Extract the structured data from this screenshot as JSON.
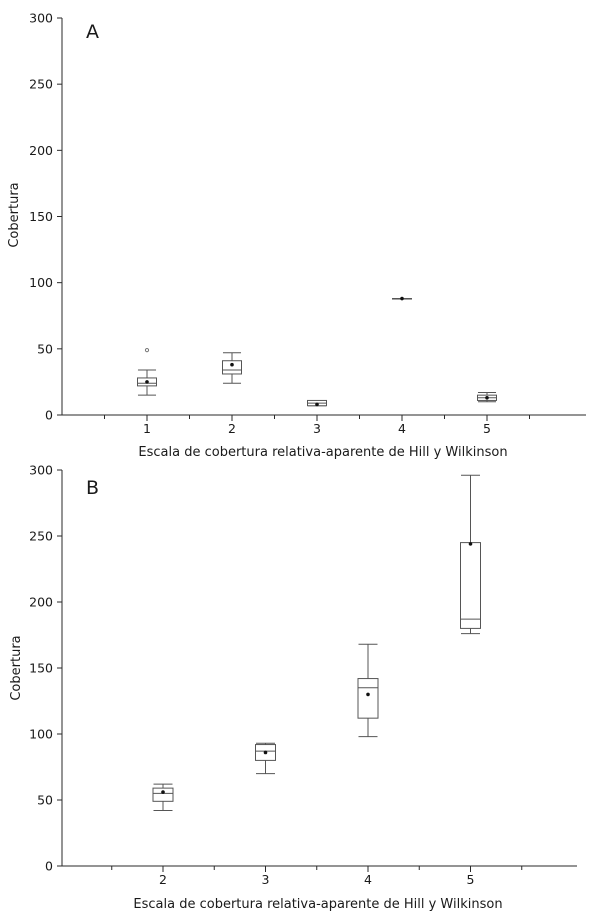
{
  "chart_data": [
    {
      "type": "boxplot",
      "panel_label": "A",
      "xlabel": "Escala de cobertura relativa-aparente de Hill y Wilkinson",
      "ylabel": "Cobertura",
      "ylim": [
        0,
        300
      ],
      "yticks": [
        0,
        50,
        100,
        150,
        200,
        250,
        300
      ],
      "categories": [
        "1",
        "2",
        "3",
        "4",
        "5"
      ],
      "boxes": [
        {
          "category": "1",
          "min": 15,
          "q1": 22,
          "median": 24,
          "q3": 28,
          "max": 34,
          "mean": 25,
          "outliers": [
            49
          ]
        },
        {
          "category": "2",
          "min": 24,
          "q1": 31,
          "median": 34,
          "q3": 41,
          "max": 47,
          "mean": 38,
          "outliers": []
        },
        {
          "category": "3",
          "min": 7,
          "q1": 7,
          "median": 9,
          "q3": 11,
          "max": 11,
          "mean": 8,
          "outliers": []
        },
        {
          "category": "4",
          "min": 88,
          "q1": 88,
          "median": 88,
          "q3": 88,
          "max": 88,
          "mean": 88,
          "outliers": []
        },
        {
          "category": "5",
          "min": 10,
          "q1": 11,
          "median": 13,
          "q3": 15,
          "max": 17,
          "mean": 13,
          "outliers": []
        }
      ]
    },
    {
      "type": "boxplot",
      "panel_label": "B",
      "xlabel": "Escala de cobertura relativa-aparente de Hill y Wilkinson",
      "ylabel": "Cobertura",
      "ylim": [
        0,
        300
      ],
      "yticks": [
        0,
        50,
        100,
        150,
        200,
        250,
        300
      ],
      "categories": [
        "2",
        "3",
        "4",
        "5"
      ],
      "boxes": [
        {
          "category": "2",
          "min": 42,
          "q1": 49,
          "median": 55,
          "q3": 59,
          "max": 62,
          "mean": 56,
          "outliers": []
        },
        {
          "category": "3",
          "min": 70,
          "q1": 80,
          "median": 87,
          "q3": 92,
          "max": 93,
          "mean": 86,
          "outliers": []
        },
        {
          "category": "4",
          "min": 98,
          "q1": 112,
          "median": 135,
          "q3": 142,
          "max": 168,
          "mean": 130,
          "outliers": []
        },
        {
          "category": "5",
          "min": 176,
          "q1": 180,
          "median": 187,
          "q3": 245,
          "max": 296,
          "mean": 244,
          "outliers": []
        }
      ]
    }
  ]
}
